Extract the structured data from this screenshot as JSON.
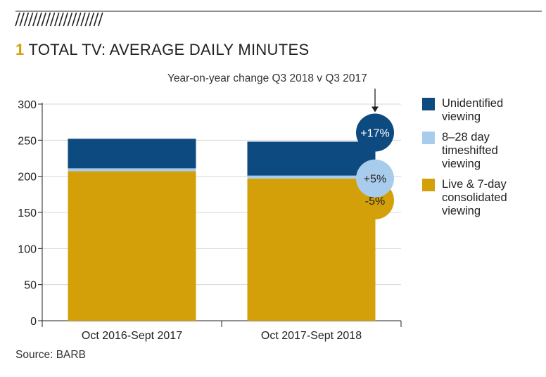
{
  "header": {
    "number": "1",
    "title": "TOTAL TV: AVERAGE DAILY MINUTES",
    "subtitle": "Year-on-year change Q3 2018 v Q3 2017"
  },
  "source": "Source: BARB",
  "colors": {
    "live": "#d4a00a",
    "timeshifted": "#a8cdec",
    "unidentified": "#0d4a80",
    "axis": "#231f20",
    "grid": "#d8d8d8"
  },
  "chart_data": {
    "type": "bar",
    "stacked": true,
    "categories": [
      "Oct 2016-Sept 2017",
      "Oct 2017-Sept 2018"
    ],
    "series": [
      {
        "name": "Live & 7-day consolidated viewing",
        "values": [
          207,
          197
        ],
        "change": "-5%"
      },
      {
        "name": "8–28 day timeshifted viewing",
        "values": [
          4,
          4
        ],
        "change": "+5%"
      },
      {
        "name": "Unidentified viewing",
        "values": [
          41,
          47
        ],
        "change": "+17%"
      }
    ],
    "yticks": [
      0,
      50,
      100,
      150,
      200,
      250,
      300
    ],
    "ylim": [
      0,
      300
    ],
    "grid": true,
    "legend_position": "right"
  }
}
